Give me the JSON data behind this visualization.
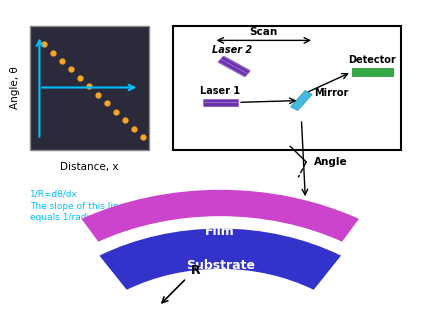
{
  "bg_color": "#ffffff",
  "graph_bg": "#2a2a3a",
  "dot_color": "#f5a623",
  "axis_line_color": "#00bfff",
  "xlabel": "Distance, x",
  "ylabel": "Angle, θ",
  "annotation_text": "1/R=dθ/dx\nThe slope of this line\nequals 1/radius",
  "film_color": "#cc44cc",
  "substrate_color": "#3333cc",
  "film_label": "Film",
  "substrate_label": "Substrate",
  "R_label": "R",
  "detector_color": "#33aa44",
  "detector_label": "Detector",
  "laser1_color": "#6633aa",
  "laser2_color": "#6633aa",
  "mirror_color": "#44bbdd",
  "scan_label": "Scan",
  "laser1_label": "Laser 1",
  "laser2_label": "Laser 2",
  "mirror_label": "Mirror",
  "angle_label": "Angle"
}
